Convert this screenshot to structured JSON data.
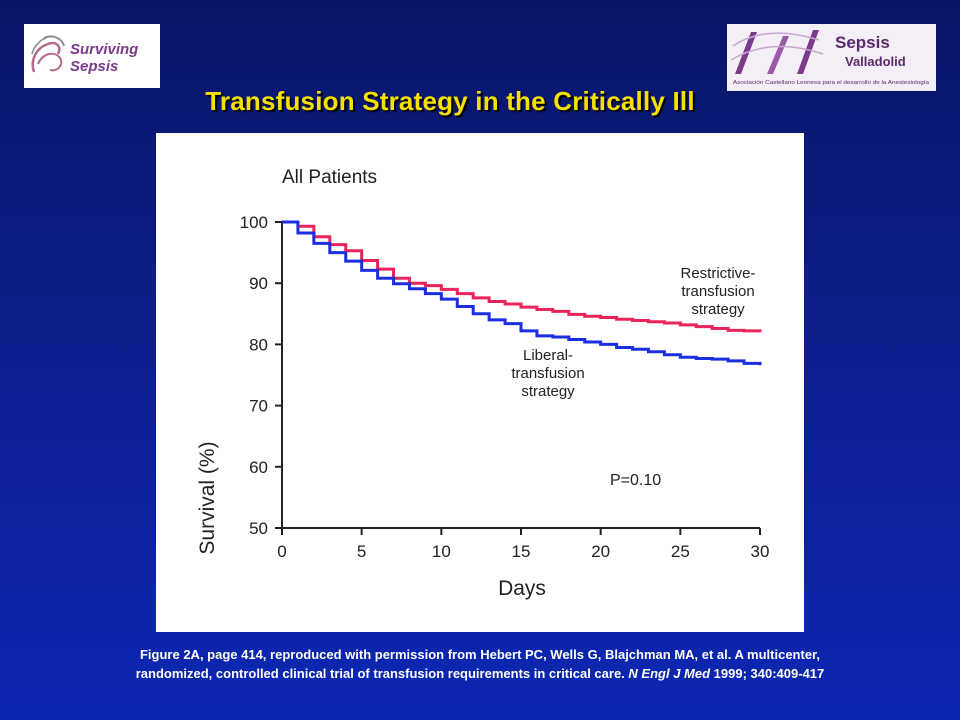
{
  "slide_title": "Transfusion Strategy in the Critically Ill",
  "logos": {
    "left": {
      "line1": "Surviving",
      "line2": "Sepsis"
    },
    "right": {
      "line1": "Sepsis",
      "line2": "Valladolid",
      "tagline": "Asociación Castellano Leonesa para el desarrollo de la Anestesiología"
    }
  },
  "colors": {
    "restrictive": "#e8245a",
    "liberal": "#1c2fe0",
    "title": "#f5e000",
    "logo_purple": "#7a3b8a"
  },
  "chart_data": {
    "type": "line",
    "title": "All Patients",
    "xlabel": "Days",
    "ylabel": "Survival (%)",
    "xlim": [
      0,
      30
    ],
    "ylim": [
      50,
      100
    ],
    "xticks": [
      0,
      5,
      10,
      15,
      20,
      25,
      30
    ],
    "yticks": [
      50,
      60,
      70,
      80,
      90,
      100
    ],
    "grid": false,
    "annotation": "P=0.10",
    "series": [
      {
        "name": "Restrictive-transfusion strategy",
        "label_lines": [
          "Restrictive-",
          "transfusion",
          "strategy"
        ],
        "x": [
          0,
          1,
          2,
          3,
          4,
          5,
          6,
          7,
          8,
          9,
          10,
          11,
          12,
          13,
          14,
          15,
          16,
          17,
          18,
          19,
          20,
          21,
          22,
          23,
          24,
          25,
          26,
          27,
          28,
          29,
          30
        ],
        "values": [
          100,
          99.3,
          97.6,
          96.3,
          95.3,
          93.7,
          92.3,
          90.8,
          90,
          89.6,
          89,
          88.3,
          87.6,
          87,
          86.6,
          86.1,
          85.7,
          85.4,
          84.9,
          84.6,
          84.4,
          84.1,
          83.9,
          83.7,
          83.5,
          83.2,
          82.9,
          82.6,
          82.3,
          82.2,
          82
        ]
      },
      {
        "name": "Liberal-transfusion strategy",
        "label_lines": [
          "Liberal-",
          "transfusion",
          "strategy"
        ],
        "x": [
          0,
          1,
          2,
          3,
          4,
          5,
          6,
          7,
          8,
          9,
          10,
          11,
          12,
          13,
          14,
          15,
          16,
          17,
          18,
          19,
          20,
          21,
          22,
          23,
          24,
          25,
          26,
          27,
          28,
          29,
          30
        ],
        "values": [
          100,
          98.2,
          96.5,
          95,
          93.6,
          92.1,
          90.8,
          89.9,
          89.1,
          88.3,
          87.4,
          86.2,
          85,
          84,
          83.4,
          82.2,
          81.4,
          81.2,
          80.8,
          80.4,
          80,
          79.5,
          79.2,
          78.8,
          78.3,
          77.9,
          77.7,
          77.6,
          77.3,
          76.9,
          76.6
        ]
      }
    ]
  },
  "caption": {
    "line1": "Figure 2A, page 414, reproduced with permission from Hebert PC, Wells G, Blajchman MA, et al. A multicenter,",
    "line2_pre": "randomized, controlled clinical trial of transfusion requirements in critical care.",
    "line2_journal": "N Engl J Med",
    "line2_post": "1999; 340:409-417"
  }
}
